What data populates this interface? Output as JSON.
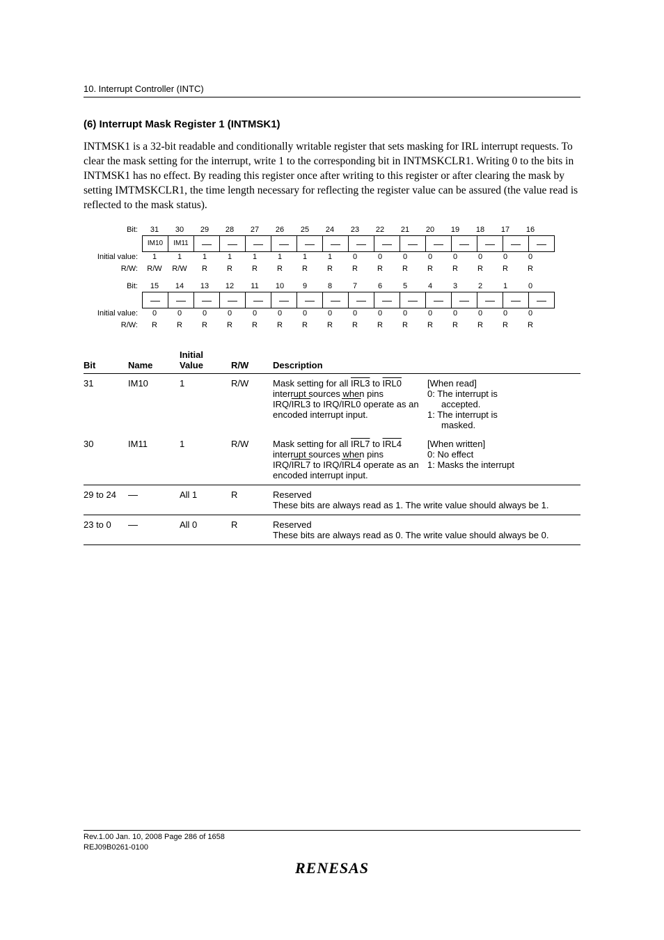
{
  "header": {
    "chapter": "10.   Interrupt Controller (INTC)"
  },
  "section": {
    "heading": "(6)    Interrupt Mask Register 1 (INTMSK1)",
    "body": "INTMSK1 is a 32-bit readable and conditionally writable register that sets masking for IRL interrupt requests. To clear the mask setting for the interrupt, write 1 to the corresponding bit in INTMSKCLR1. Writing 0 to the bits in INTMSK1 has no effect. By reading this register once after writing to this register or after clearing the mask by setting IMTMSKCLR1, the time length necessary for reflecting the register value can be assured (the value read is reflected to the mask status)."
  },
  "bitmap": {
    "labels": {
      "bit": "Bit:",
      "initial": "Initial value:",
      "rw": "R/W:"
    },
    "rows": [
      {
        "bits": [
          "31",
          "30",
          "29",
          "28",
          "27",
          "26",
          "25",
          "24",
          "23",
          "22",
          "21",
          "20",
          "19",
          "18",
          "17",
          "16"
        ],
        "names": [
          "IM10",
          "IM11",
          "—",
          "—",
          "—",
          "—",
          "—",
          "—",
          "—",
          "—",
          "—",
          "—",
          "—",
          "—",
          "—",
          "—"
        ],
        "initial": [
          "1",
          "1",
          "1",
          "1",
          "1",
          "1",
          "1",
          "1",
          "0",
          "0",
          "0",
          "0",
          "0",
          "0",
          "0",
          "0"
        ],
        "rw": [
          "R/W",
          "R/W",
          "R",
          "R",
          "R",
          "R",
          "R",
          "R",
          "R",
          "R",
          "R",
          "R",
          "R",
          "R",
          "R",
          "R"
        ]
      },
      {
        "bits": [
          "15",
          "14",
          "13",
          "12",
          "11",
          "10",
          "9",
          "8",
          "7",
          "6",
          "5",
          "4",
          "3",
          "2",
          "1",
          "0"
        ],
        "names": [
          "—",
          "—",
          "—",
          "—",
          "—",
          "—",
          "—",
          "—",
          "—",
          "—",
          "—",
          "—",
          "—",
          "—",
          "—",
          "—"
        ],
        "initial": [
          "0",
          "0",
          "0",
          "0",
          "0",
          "0",
          "0",
          "0",
          "0",
          "0",
          "0",
          "0",
          "0",
          "0",
          "0",
          "0"
        ],
        "rw": [
          "R",
          "R",
          "R",
          "R",
          "R",
          "R",
          "R",
          "R",
          "R",
          "R",
          "R",
          "R",
          "R",
          "R",
          "R",
          "R"
        ]
      }
    ]
  },
  "desc_table": {
    "headers": {
      "bit": "Bit",
      "name": "Name",
      "iv_l1": "Initial",
      "iv_l2": "Value",
      "rw": "R/W",
      "desc": "Description"
    },
    "rows": [
      {
        "bit": "31",
        "name": "IM10",
        "iv": "1",
        "rw": "R/W",
        "left_html": "Mask setting for all <span class='ol'>IRL3</span> to <span class='ol'>IRL0</span> interrupt sources when pins IRQ/<span class='ol'>IRL3</span> to IRQ/<span class='ol'>IRL0</span> operate as an encoded interrupt input.",
        "right_html": "[When read]<br>0: The interrupt is<br><span class='indent1'>accepted.</span><br>1: The interrupt is<br><span class='indent1'>masked.</span>"
      },
      {
        "bit": "30",
        "name": "IM11",
        "iv": "1",
        "rw": "R/W",
        "left_html": "Mask setting for all <span class='ol'>IRL7</span> to <span class='ol'>IRL4</span> interrupt sources when pins IRQ/<span class='ol'>IRL7</span> to IRQ/<span class='ol'>IRL4</span> operate as an encoded interrupt input.",
        "right_html": "[When written]<br>0: No effect<br>1: Masks the interrupt"
      },
      {
        "bit": "29 to 24",
        "name": "—",
        "iv": "All 1",
        "rw": "R",
        "full_html": "Reserved<br>These bits are always read as 1. The write value should always be 1."
      },
      {
        "bit": "23 to 0",
        "name": "—",
        "iv": "All 0",
        "rw": "R",
        "full_html": "Reserved<br>These bits are always read as 0. The write value should always be 0."
      }
    ]
  },
  "footer": {
    "line1": "Rev.1.00  Jan. 10, 2008  Page 286 of 1658",
    "line2": "REJ09B0261-0100",
    "logo": "RENESAS"
  }
}
